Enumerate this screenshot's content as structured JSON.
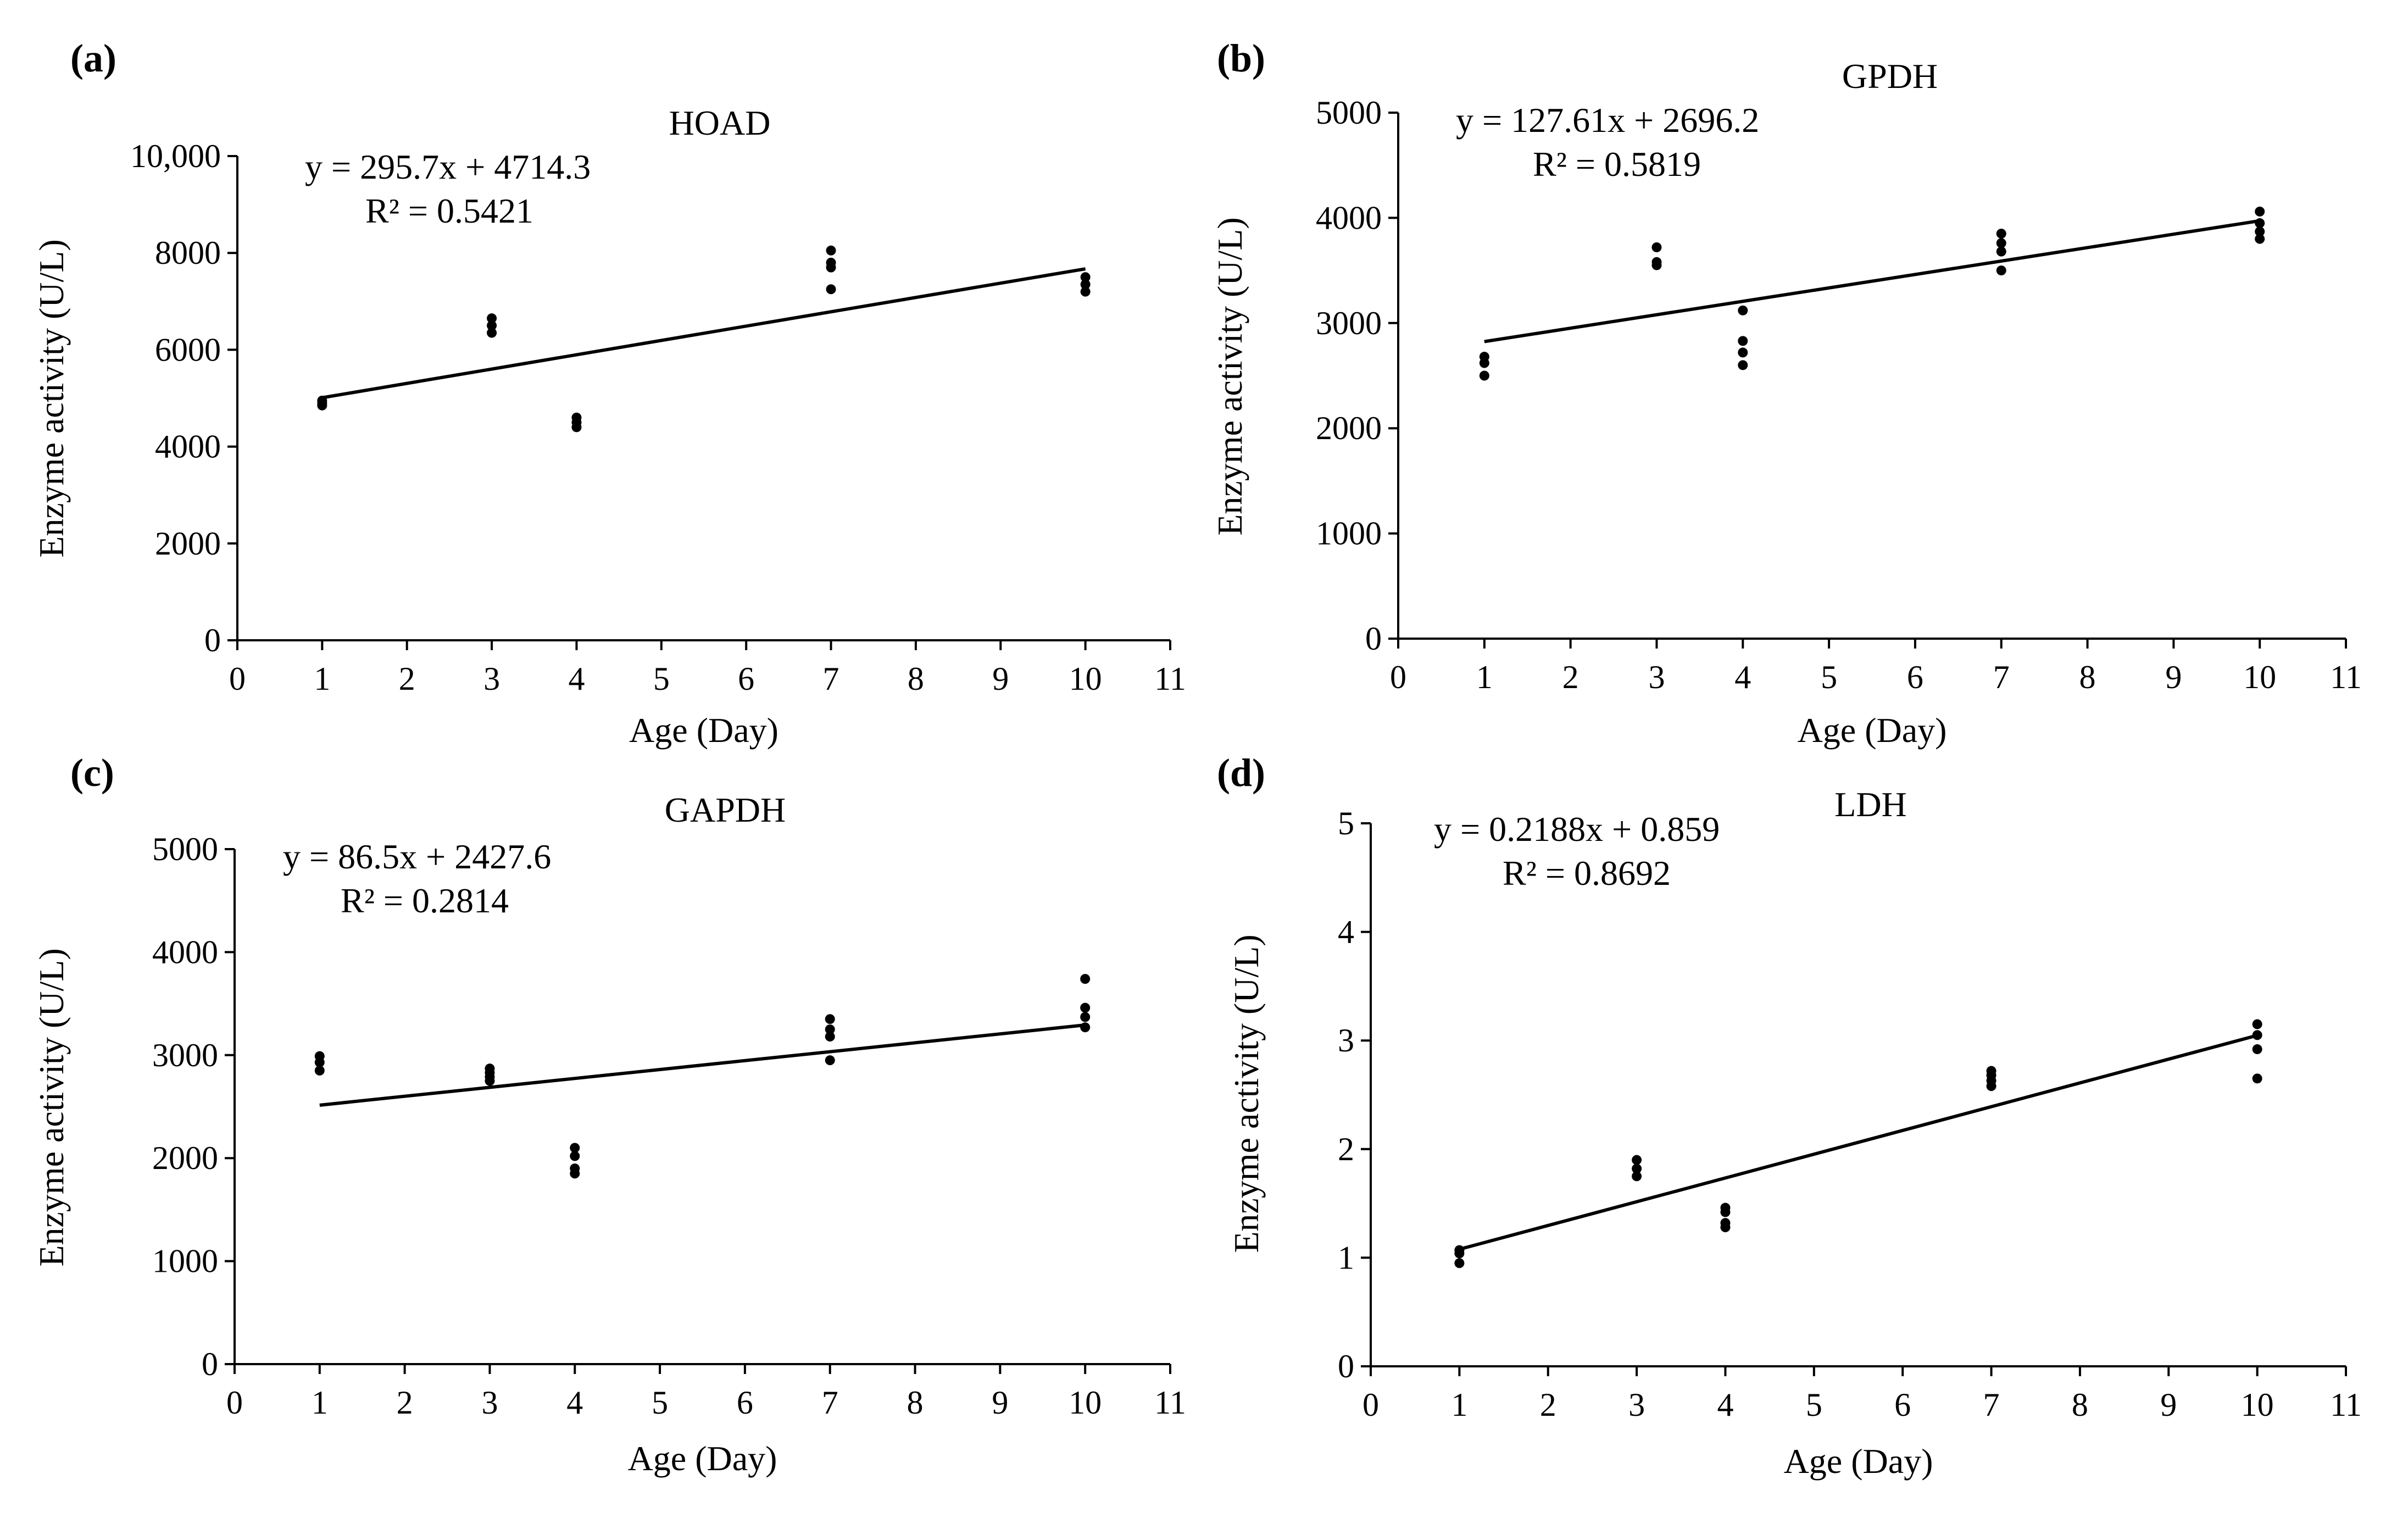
{
  "chart_data": [
    {
      "panel": "(a)",
      "type": "scatter",
      "title": "HOAD",
      "xlabel": "Age (Day)",
      "ylabel": "Enzyme activity (U/L)",
      "xlim": [
        0,
        11
      ],
      "ylim": [
        0,
        10000
      ],
      "xticks": [
        "0",
        "1",
        "2",
        "3",
        "4",
        "5",
        "6",
        "7",
        "8",
        "9",
        "10",
        "11"
      ],
      "yticks": [
        "0",
        "2000",
        "4000",
        "6000",
        "8000",
        "10,000"
      ],
      "ytick_values": [
        0,
        2000,
        4000,
        6000,
        8000,
        10000
      ],
      "equation": "y = 295.7x + 4714.3",
      "r2": "R² = 0.5421",
      "trend": {
        "slope": 295.7,
        "intercept": 4714.3,
        "x_start": 1,
        "x_end": 10
      },
      "points": [
        {
          "x": 1,
          "y": 4850
        },
        {
          "x": 1,
          "y": 4950
        },
        {
          "x": 1,
          "y": 4900
        },
        {
          "x": 3,
          "y": 6350
        },
        {
          "x": 3,
          "y": 6500
        },
        {
          "x": 3,
          "y": 6650
        },
        {
          "x": 4,
          "y": 4400
        },
        {
          "x": 4,
          "y": 4500
        },
        {
          "x": 4,
          "y": 4600
        },
        {
          "x": 7,
          "y": 7250
        },
        {
          "x": 7,
          "y": 7700
        },
        {
          "x": 7,
          "y": 7800
        },
        {
          "x": 7,
          "y": 8050
        },
        {
          "x": 10,
          "y": 7200
        },
        {
          "x": 10,
          "y": 7350
        },
        {
          "x": 10,
          "y": 7500
        }
      ]
    },
    {
      "panel": "(b)",
      "type": "scatter",
      "title": "GPDH",
      "xlabel": "Age (Day)",
      "ylabel": "Enzyme activity (U/L)",
      "xlim": [
        0,
        11
      ],
      "ylim": [
        0,
        5000
      ],
      "xticks": [
        "0",
        "1",
        "2",
        "3",
        "4",
        "5",
        "6",
        "7",
        "8",
        "9",
        "10",
        "11"
      ],
      "yticks": [
        "0",
        "1000",
        "2000",
        "3000",
        "4000",
        "5000"
      ],
      "ytick_values": [
        0,
        1000,
        2000,
        3000,
        4000,
        5000
      ],
      "equation": "y = 127.61x + 2696.2",
      "r2": "R² = 0.5819",
      "trend": {
        "slope": 127.61,
        "intercept": 2696.2,
        "x_start": 1,
        "x_end": 10
      },
      "points": [
        {
          "x": 1,
          "y": 2500
        },
        {
          "x": 1,
          "y": 2620
        },
        {
          "x": 1,
          "y": 2680
        },
        {
          "x": 3,
          "y": 3550
        },
        {
          "x": 3,
          "y": 3580
        },
        {
          "x": 3,
          "y": 3720
        },
        {
          "x": 4,
          "y": 2600
        },
        {
          "x": 4,
          "y": 2720
        },
        {
          "x": 4,
          "y": 2830
        },
        {
          "x": 4,
          "y": 3120
        },
        {
          "x": 7,
          "y": 3500
        },
        {
          "x": 7,
          "y": 3680
        },
        {
          "x": 7,
          "y": 3760
        },
        {
          "x": 7,
          "y": 3850
        },
        {
          "x": 10,
          "y": 3800
        },
        {
          "x": 10,
          "y": 3870
        },
        {
          "x": 10,
          "y": 3950
        },
        {
          "x": 10,
          "y": 4060
        }
      ]
    },
    {
      "panel": "(c)",
      "type": "scatter",
      "title": "GAPDH",
      "xlabel": "Age (Day)",
      "ylabel": "Enzyme activity (U/L)",
      "xlim": [
        0,
        11
      ],
      "ylim": [
        0,
        5000
      ],
      "xticks": [
        "0",
        "1",
        "2",
        "3",
        "4",
        "5",
        "6",
        "7",
        "8",
        "9",
        "10",
        "11"
      ],
      "yticks": [
        "0",
        "1000",
        "2000",
        "3000",
        "4000",
        "5000"
      ],
      "ytick_values": [
        0,
        1000,
        2000,
        3000,
        4000,
        5000
      ],
      "equation": "y = 86.5x + 2427.6",
      "r2": "R² = 0.2814",
      "trend": {
        "slope": 86.5,
        "intercept": 2427.6,
        "x_start": 1,
        "x_end": 10
      },
      "points": [
        {
          "x": 1,
          "y": 2850
        },
        {
          "x": 1,
          "y": 2930
        },
        {
          "x": 1,
          "y": 2990
        },
        {
          "x": 3,
          "y": 2750
        },
        {
          "x": 3,
          "y": 2790
        },
        {
          "x": 3,
          "y": 2830
        },
        {
          "x": 3,
          "y": 2870
        },
        {
          "x": 4,
          "y": 1850
        },
        {
          "x": 4,
          "y": 1900
        },
        {
          "x": 4,
          "y": 2020
        },
        {
          "x": 4,
          "y": 2100
        },
        {
          "x": 7,
          "y": 2950
        },
        {
          "x": 7,
          "y": 3180
        },
        {
          "x": 7,
          "y": 3250
        },
        {
          "x": 7,
          "y": 3350
        },
        {
          "x": 10,
          "y": 3270
        },
        {
          "x": 10,
          "y": 3370
        },
        {
          "x": 10,
          "y": 3460
        },
        {
          "x": 10,
          "y": 3740
        }
      ]
    },
    {
      "panel": "(d)",
      "type": "scatter",
      "title": "LDH",
      "xlabel": "Age (Day)",
      "ylabel": "Enzyme activity (U/L)",
      "xlim": [
        0,
        11
      ],
      "ylim": [
        0,
        5
      ],
      "xticks": [
        "0",
        "1",
        "2",
        "3",
        "4",
        "5",
        "6",
        "7",
        "8",
        "9",
        "10",
        "11"
      ],
      "yticks": [
        "0",
        "1",
        "2",
        "3",
        "4",
        "5"
      ],
      "ytick_values": [
        0,
        1,
        2,
        3,
        4,
        5
      ],
      "equation": "y = 0.2188x + 0.859",
      "r2": "R² = 0.8692",
      "trend": {
        "slope": 0.2188,
        "intercept": 0.859,
        "x_start": 1,
        "x_end": 10
      },
      "points": [
        {
          "x": 1,
          "y": 0.95
        },
        {
          "x": 1,
          "y": 1.04
        },
        {
          "x": 1,
          "y": 1.07
        },
        {
          "x": 3,
          "y": 1.75
        },
        {
          "x": 3,
          "y": 1.82
        },
        {
          "x": 3,
          "y": 1.9
        },
        {
          "x": 4,
          "y": 1.28
        },
        {
          "x": 4,
          "y": 1.32
        },
        {
          "x": 4,
          "y": 1.42
        },
        {
          "x": 4,
          "y": 1.46
        },
        {
          "x": 7,
          "y": 2.58
        },
        {
          "x": 7,
          "y": 2.63
        },
        {
          "x": 7,
          "y": 2.68
        },
        {
          "x": 7,
          "y": 2.72
        },
        {
          "x": 10,
          "y": 2.65
        },
        {
          "x": 10,
          "y": 2.92
        },
        {
          "x": 10,
          "y": 3.05
        },
        {
          "x": 10,
          "y": 3.15
        }
      ]
    }
  ]
}
